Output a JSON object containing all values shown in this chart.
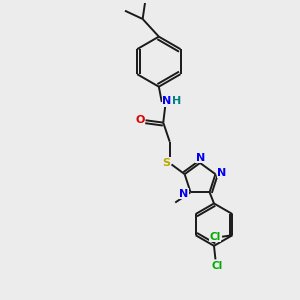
{
  "bg_color": "#ececec",
  "bond_color": "#1a1a1a",
  "bond_width": 1.4,
  "figsize": [
    3.0,
    3.0
  ],
  "dpi": 100,
  "atoms": {
    "N_blue": "#0000ee",
    "O_red": "#dd0000",
    "S_yellow": "#bbaa00",
    "Cl_green": "#00aa00",
    "H_teal": "#008080",
    "C_black": "#1a1a1a"
  },
  "xlim": [
    0,
    10
  ],
  "ylim": [
    0,
    10
  ]
}
